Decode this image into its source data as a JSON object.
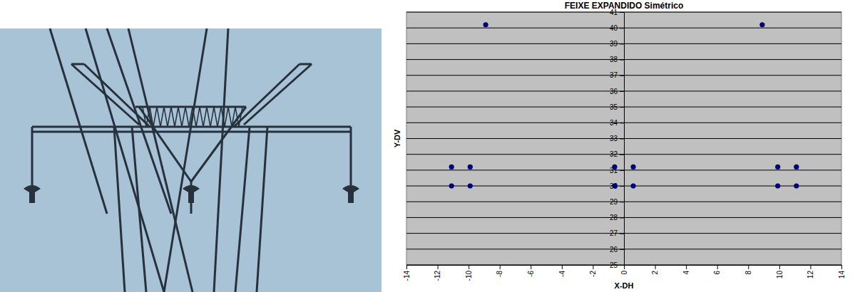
{
  "chart_data": {
    "type": "scatter",
    "title": "FEIXE EXPANDIDO Simétrico",
    "x_label": "X-DH",
    "y_label": "Y-DV",
    "x": [
      -8.9,
      8.9,
      -11.1,
      -9.9,
      -11.1,
      -9.9,
      -0.6,
      0.6,
      -0.6,
      0.6,
      9.9,
      11.1,
      9.9,
      11.1
    ],
    "y": [
      40.2,
      40.2,
      31.2,
      31.2,
      30,
      30,
      31.2,
      31.2,
      30,
      30,
      31.2,
      31.2,
      30,
      30
    ],
    "color": "#00007f",
    "marker": "circle",
    "xlim": [
      -14,
      14
    ],
    "xticks": [
      -14,
      -12,
      -10,
      -8,
      -6,
      -4,
      -2,
      0,
      2,
      4,
      6,
      8,
      10,
      12,
      14
    ],
    "ylim": [
      25,
      41
    ],
    "yticks": [
      25,
      26,
      27,
      28,
      29,
      30,
      31,
      32,
      33,
      34,
      35,
      36,
      37,
      38,
      39,
      40,
      41
    ],
    "grid": "y"
  }
}
